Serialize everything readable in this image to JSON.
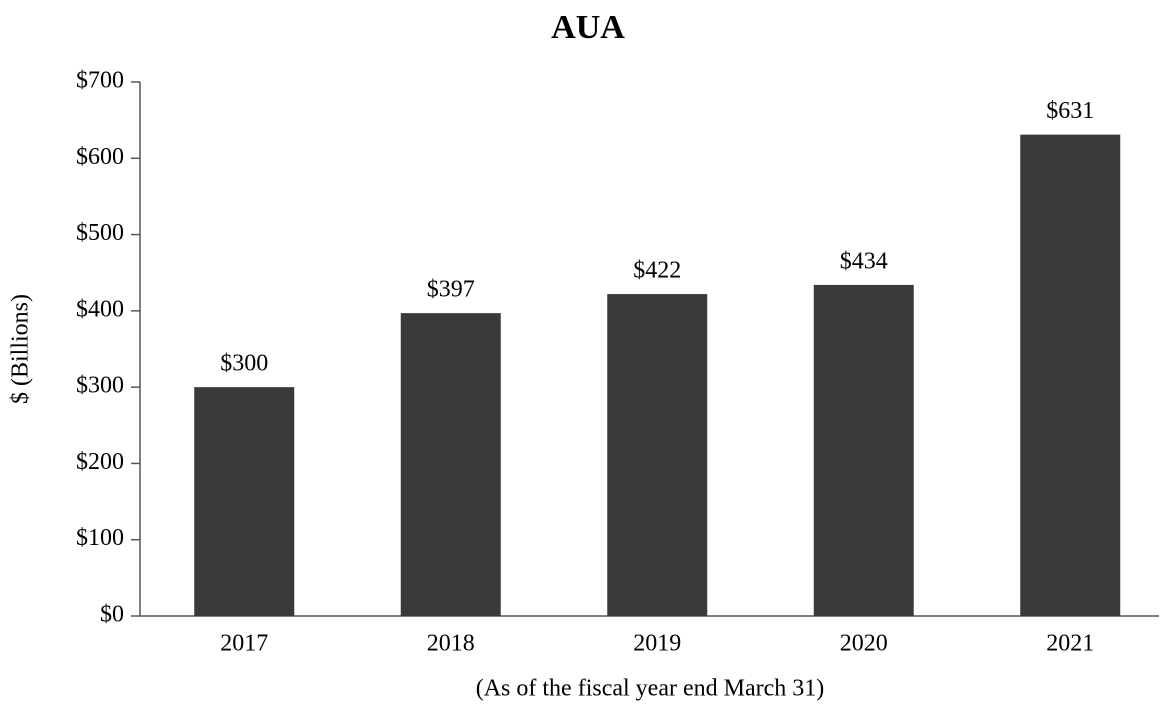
{
  "chart_data": {
    "type": "bar",
    "title": "AUA",
    "y_label": "$ (Billions)",
    "x_label": "(As of the fiscal year end March 31)",
    "categories": [
      "2017",
      "2018",
      "2019",
      "2020",
      "2021"
    ],
    "values": [
      300,
      397,
      422,
      434,
      631
    ],
    "value_labels": [
      "$300",
      "$397",
      "$422",
      "$434",
      "$631"
    ],
    "color": "#3a3a3a",
    "ylim": [
      0,
      700
    ],
    "yticks": [
      {
        "value": 0,
        "label": "$0"
      },
      {
        "value": 100,
        "label": "$100"
      },
      {
        "value": 200,
        "label": "$200"
      },
      {
        "value": 300,
        "label": "$300"
      },
      {
        "value": 400,
        "label": "$400"
      },
      {
        "value": 500,
        "label": "$500"
      },
      {
        "value": 600,
        "label": "$600"
      },
      {
        "value": 700,
        "label": "$700"
      }
    ],
    "grid": false
  }
}
